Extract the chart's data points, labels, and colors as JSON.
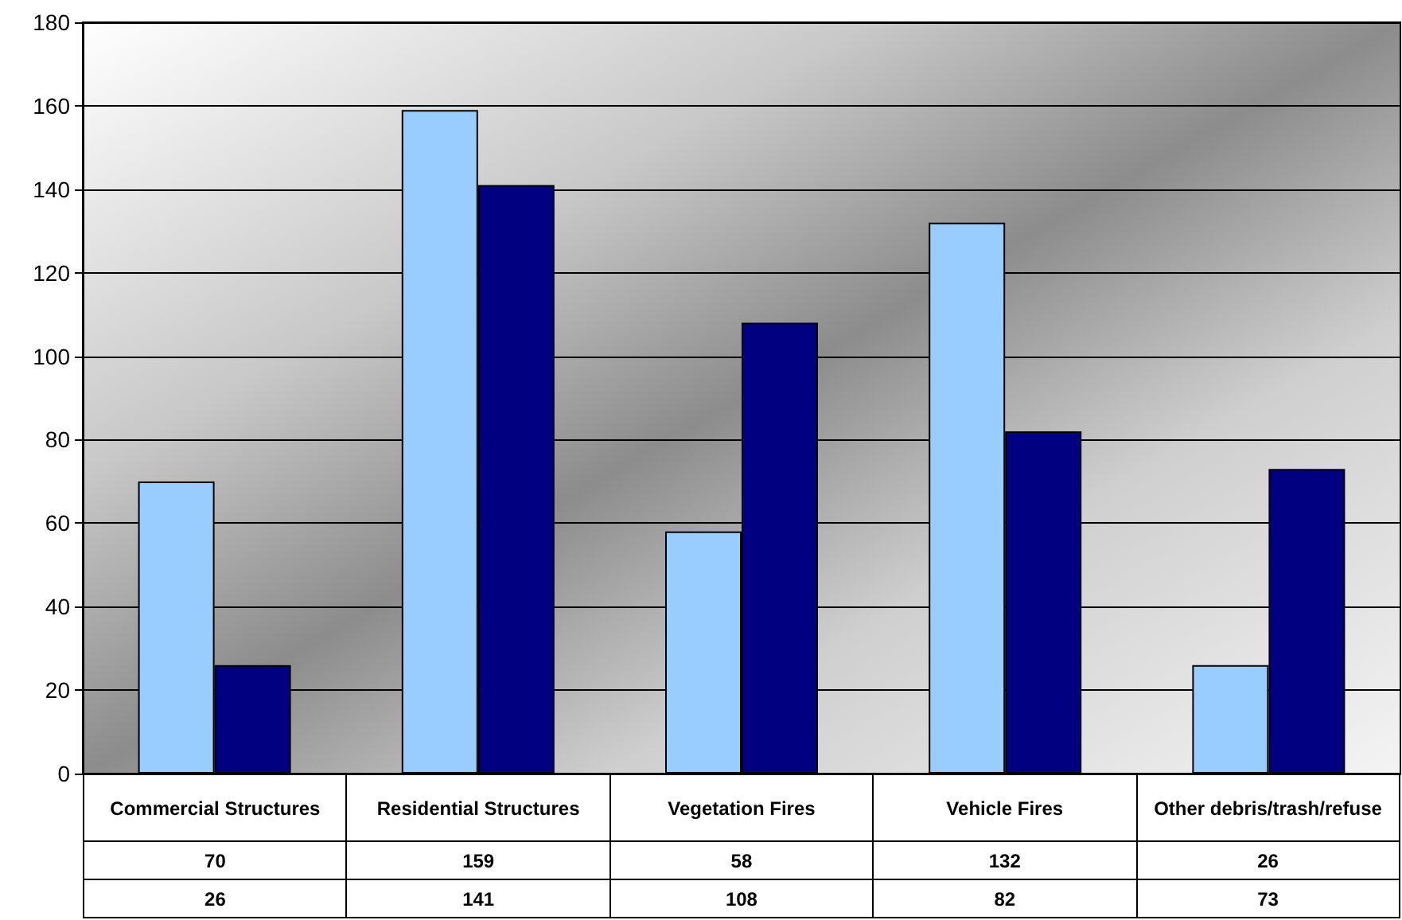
{
  "chart_data": {
    "type": "bar",
    "categories": [
      "Commercial Structures",
      "Residential Structures",
      "Vegetation Fires",
      "Vehicle Fires",
      "Other debris/trash/refuse"
    ],
    "series": [
      {
        "color": "#99ccff",
        "values": [
          70,
          159,
          58,
          132,
          26
        ]
      },
      {
        "color": "#000080",
        "values": [
          26,
          141,
          108,
          82,
          73
        ]
      }
    ],
    "ylim": [
      0,
      180
    ],
    "yticks": [
      0,
      20,
      40,
      60,
      80,
      100,
      120,
      140,
      160,
      180
    ],
    "grid": "y",
    "data_labels": true
  }
}
